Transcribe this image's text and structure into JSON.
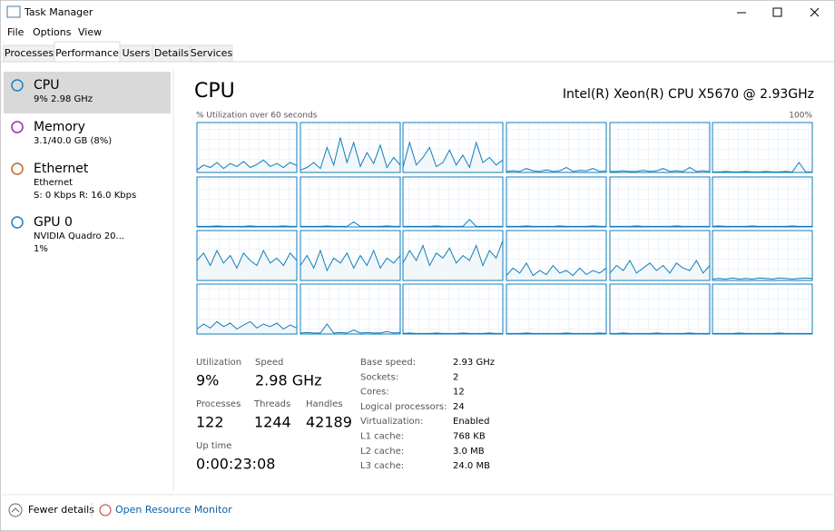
{
  "window": {
    "title": "Task Manager"
  },
  "menu": [
    "File",
    "Options",
    "View"
  ],
  "tabs": [
    "Processes",
    "Performance",
    "Users",
    "Details",
    "Services"
  ],
  "sidebar": [
    {
      "name": "CPU",
      "detail": [
        "9% 2.98 GHz"
      ]
    },
    {
      "name": "Memory",
      "detail": [
        "3.1/40.0 GB (8%)"
      ]
    },
    {
      "name": "Ethernet",
      "detail": [
        "Ethernet",
        "S: 0 Kbps R: 16.0 Kbps"
      ]
    },
    {
      "name": "GPU 0",
      "detail": [
        "NVIDIA Quadro 20...",
        "1%"
      ]
    }
  ],
  "header": {
    "title": "CPU",
    "model": "Intel(R) Xeon(R) CPU X5670 @ 2.93GHz"
  },
  "cpu_graph": {
    "label": "% Utilization over 60 seconds",
    "max_label": "100%",
    "ylim": [
      0,
      100
    ],
    "series": [
      [
        5,
        15,
        10,
        20,
        8,
        18,
        12,
        22,
        10,
        16,
        25,
        12,
        18,
        10,
        20,
        14
      ],
      [
        5,
        10,
        20,
        8,
        50,
        15,
        70,
        20,
        60,
        12,
        40,
        18,
        55,
        10,
        30,
        15
      ],
      [
        10,
        60,
        15,
        30,
        50,
        12,
        20,
        45,
        15,
        35,
        10,
        60,
        20,
        30,
        15,
        25
      ],
      [
        2,
        3,
        2,
        8,
        3,
        2,
        5,
        2,
        3,
        10,
        2,
        4,
        3,
        8,
        2,
        3
      ],
      [
        2,
        2,
        3,
        2,
        2,
        4,
        2,
        3,
        8,
        2,
        3,
        2,
        10,
        2,
        3,
        2
      ],
      [
        1,
        1,
        2,
        1,
        1,
        2,
        1,
        1,
        2,
        1,
        1,
        2,
        1,
        20,
        1,
        1
      ],
      [
        1,
        1,
        1,
        2,
        1,
        1,
        1,
        1,
        2,
        1,
        1,
        1,
        1,
        2,
        1,
        1
      ],
      [
        1,
        1,
        1,
        1,
        2,
        1,
        1,
        1,
        10,
        1,
        1,
        1,
        1,
        2,
        1,
        1
      ],
      [
        1,
        1,
        1,
        1,
        1,
        2,
        1,
        1,
        1,
        1,
        15,
        1,
        1,
        1,
        1,
        1
      ],
      [
        1,
        1,
        1,
        2,
        1,
        1,
        1,
        1,
        2,
        1,
        1,
        1,
        1,
        2,
        1,
        1
      ],
      [
        1,
        1,
        1,
        1,
        2,
        1,
        1,
        1,
        1,
        1,
        2,
        1,
        1,
        1,
        1,
        1
      ],
      [
        1,
        2,
        1,
        1,
        1,
        1,
        2,
        1,
        1,
        1,
        1,
        1,
        2,
        1,
        1,
        1
      ],
      [
        40,
        55,
        30,
        60,
        35,
        50,
        25,
        55,
        40,
        30,
        60,
        35,
        45,
        30,
        55,
        40
      ],
      [
        30,
        50,
        25,
        60,
        20,
        45,
        35,
        55,
        25,
        50,
        30,
        60,
        25,
        45,
        35,
        50
      ],
      [
        35,
        60,
        40,
        70,
        30,
        55,
        45,
        65,
        35,
        50,
        40,
        70,
        30,
        60,
        45,
        80
      ],
      [
        10,
        25,
        15,
        35,
        10,
        20,
        12,
        30,
        15,
        20,
        10,
        25,
        12,
        20,
        15,
        25
      ],
      [
        15,
        30,
        20,
        40,
        15,
        25,
        35,
        20,
        30,
        15,
        35,
        25,
        20,
        40,
        15,
        30
      ],
      [
        3,
        4,
        3,
        5,
        3,
        4,
        3,
        5,
        4,
        3,
        5,
        4,
        3,
        4,
        5,
        4
      ],
      [
        10,
        20,
        12,
        25,
        15,
        22,
        10,
        18,
        25,
        12,
        20,
        15,
        22,
        10,
        18,
        12
      ],
      [
        2,
        3,
        2,
        2,
        20,
        2,
        3,
        2,
        8,
        2,
        3,
        2,
        2,
        5,
        2,
        3
      ],
      [
        1,
        2,
        1,
        1,
        1,
        2,
        1,
        1,
        1,
        2,
        1,
        1,
        1,
        2,
        1,
        1
      ],
      [
        1,
        1,
        1,
        2,
        1,
        1,
        1,
        1,
        1,
        2,
        1,
        1,
        1,
        1,
        2,
        1
      ],
      [
        1,
        1,
        2,
        1,
        1,
        1,
        1,
        2,
        1,
        1,
        1,
        1,
        2,
        1,
        1,
        1
      ],
      [
        1,
        1,
        1,
        1,
        2,
        1,
        1,
        1,
        1,
        1,
        2,
        1,
        1,
        1,
        1,
        1
      ]
    ]
  },
  "stats": [
    {
      "label": "Utilization",
      "value": "9%"
    },
    {
      "label": "Speed",
      "value": "2.98 GHz"
    },
    {
      "label": "Processes",
      "value": "122"
    },
    {
      "label": "Threads",
      "value": "1244"
    },
    {
      "label": "Handles",
      "value": "42189"
    },
    {
      "label": "Up time",
      "value": "0:00:23:08"
    }
  ],
  "specs": [
    {
      "label": "Base speed:",
      "value": "2.93 GHz"
    },
    {
      "label": "Sockets:",
      "value": "2"
    },
    {
      "label": "Cores:",
      "value": "12"
    },
    {
      "label": "Logical processors:",
      "value": "24"
    },
    {
      "label": "Virtualization:",
      "value": "Enabled"
    },
    {
      "label": "L1 cache:",
      "value": "768 KB"
    },
    {
      "label": "L2 cache:",
      "value": "3.0 MB"
    },
    {
      "label": "L3 cache:",
      "value": "24.0 MB"
    }
  ],
  "footer": {
    "fewer": "Fewer details",
    "monitor": "Open Resource Monitor"
  }
}
